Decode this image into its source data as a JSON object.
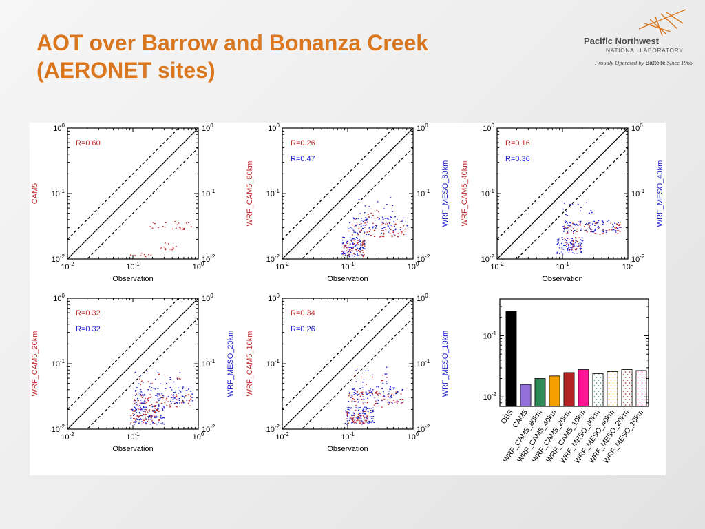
{
  "slide": {
    "title_line1": "AOT over Barrow and Bonanza Creek",
    "title_line2": "(AERONET sites)"
  },
  "logo": {
    "name": "Pacific Northwest",
    "sub": "NATIONAL LABORATORY",
    "tag_prefix": "Proudly Operated by",
    "tag_brand": "Battelle",
    "tag_suffix": "Since 1965"
  },
  "colors": {
    "title": "#d9761e",
    "cam": "#c0282c",
    "meso": "#1a1acc"
  },
  "chart_data": [
    {
      "type": "scatter",
      "xlabel": "Observation",
      "ylabel_left": "CAM5",
      "ylabel_right": "",
      "xscale": "log",
      "yscale": "log",
      "xlim": [
        0.01,
        1
      ],
      "ylim": [
        0.01,
        1
      ],
      "xticks": [
        "10^-2",
        "10^-1",
        "10^0"
      ],
      "yticks": [
        "10^-2",
        "10^-1",
        "10^0"
      ],
      "reference_lines": {
        "solid": "1:1",
        "dashed": [
          "2:1",
          "1:2"
        ]
      },
      "annotations": [
        {
          "text": "R=0.60",
          "series": "cam"
        }
      ],
      "clusters": [
        {
          "series": "cam",
          "x": [
            0.15,
            0.8
          ],
          "y": [
            0.027,
            0.038
          ],
          "n": 22
        },
        {
          "series": "cam",
          "x": [
            0.2,
            0.55
          ],
          "y": [
            0.014,
            0.018
          ],
          "n": 14
        },
        {
          "series": "cam",
          "x": [
            0.09,
            0.2
          ],
          "y": [
            0.0105,
            0.0125
          ],
          "n": 10
        }
      ]
    },
    {
      "type": "scatter",
      "xlabel": "Observation",
      "ylabel_left": "WRF_CAM5_80km",
      "ylabel_right": "WRF_MESO_80km",
      "xscale": "log",
      "yscale": "log",
      "xlim": [
        0.01,
        1
      ],
      "ylim": [
        0.01,
        1
      ],
      "xticks": [
        "10^-2",
        "10^-1",
        "10^0"
      ],
      "yticks": [
        "10^-2",
        "10^-1",
        "10^0"
      ],
      "reference_lines": {
        "solid": "1:1",
        "dashed": [
          "2:1",
          "1:2"
        ]
      },
      "annotations": [
        {
          "text": "R=0.26",
          "series": "cam"
        },
        {
          "text": "R=0.47",
          "series": "meso"
        }
      ],
      "clusters": [
        {
          "series": "meso",
          "x": [
            0.1,
            0.8
          ],
          "y": [
            0.024,
            0.045
          ],
          "n": 90
        },
        {
          "series": "meso",
          "x": [
            0.08,
            0.18
          ],
          "y": [
            0.011,
            0.022
          ],
          "n": 80
        },
        {
          "series": "meso",
          "x": [
            0.12,
            0.5
          ],
          "y": [
            0.05,
            0.09
          ],
          "n": 12
        },
        {
          "series": "cam",
          "x": [
            0.1,
            0.8
          ],
          "y": [
            0.022,
            0.038
          ],
          "n": 60
        },
        {
          "series": "cam",
          "x": [
            0.08,
            0.18
          ],
          "y": [
            0.011,
            0.02
          ],
          "n": 50
        },
        {
          "series": "cam",
          "x": [
            0.1,
            0.3
          ],
          "y": [
            0.04,
            0.06
          ],
          "n": 8
        }
      ]
    },
    {
      "type": "scatter",
      "xlabel": "Observation",
      "ylabel_left": "WRF_CAM5_40km",
      "ylabel_right": "WRF_MESO_40km",
      "xscale": "log",
      "yscale": "log",
      "xlim": [
        0.01,
        1
      ],
      "ylim": [
        0.01,
        1
      ],
      "xticks": [
        "10^-2",
        "10^-1",
        "10^0"
      ],
      "yticks": [
        "10^-2",
        "10^-1",
        "10^0"
      ],
      "reference_lines": {
        "solid": "1:1",
        "dashed": [
          "2:1",
          "1:2"
        ]
      },
      "annotations": [
        {
          "text": "R=0.16",
          "series": "cam"
        },
        {
          "text": "R=0.36",
          "series": "meso"
        }
      ],
      "clusters": [
        {
          "series": "meso",
          "x": [
            0.1,
            0.8
          ],
          "y": [
            0.026,
            0.04
          ],
          "n": 90
        },
        {
          "series": "meso",
          "x": [
            0.08,
            0.2
          ],
          "y": [
            0.012,
            0.022
          ],
          "n": 80
        },
        {
          "series": "meso",
          "x": [
            0.1,
            0.4
          ],
          "y": [
            0.045,
            0.075
          ],
          "n": 14
        },
        {
          "series": "cam",
          "x": [
            0.1,
            0.8
          ],
          "y": [
            0.024,
            0.038
          ],
          "n": 55
        },
        {
          "series": "cam",
          "x": [
            0.1,
            0.2
          ],
          "y": [
            0.014,
            0.022
          ],
          "n": 25
        }
      ]
    },
    {
      "type": "scatter",
      "xlabel": "Observation",
      "ylabel_left": "WRF_CAM5_20km",
      "ylabel_right": "WRF_MESO_20km",
      "xscale": "log",
      "yscale": "log",
      "xlim": [
        0.01,
        1
      ],
      "ylim": [
        0.01,
        1
      ],
      "xticks": [
        "10^-2",
        "10^-1",
        "10^0"
      ],
      "yticks": [
        "10^-2",
        "10^-1",
        "10^0"
      ],
      "reference_lines": {
        "solid": "1:1",
        "dashed": [
          "2:1",
          "1:2"
        ]
      },
      "annotations": [
        {
          "text": "R=0.32",
          "series": "cam"
        },
        {
          "text": "R=0.32",
          "series": "meso"
        }
      ],
      "clusters": [
        {
          "series": "meso",
          "x": [
            0.1,
            0.8
          ],
          "y": [
            0.025,
            0.045
          ],
          "n": 100
        },
        {
          "series": "meso",
          "x": [
            0.09,
            0.3
          ],
          "y": [
            0.012,
            0.024
          ],
          "n": 110
        },
        {
          "series": "meso",
          "x": [
            0.1,
            0.6
          ],
          "y": [
            0.05,
            0.08
          ],
          "n": 16
        },
        {
          "series": "cam",
          "x": [
            0.1,
            0.8
          ],
          "y": [
            0.022,
            0.035
          ],
          "n": 60
        },
        {
          "series": "cam",
          "x": [
            0.09,
            0.25
          ],
          "y": [
            0.012,
            0.022
          ],
          "n": 60
        },
        {
          "series": "cam",
          "x": [
            0.12,
            0.6
          ],
          "y": [
            0.045,
            0.07
          ],
          "n": 10
        }
      ]
    },
    {
      "type": "scatter",
      "xlabel": "Observation",
      "ylabel_left": "WRF_CAM5_10km",
      "ylabel_right": "WRF_MESO_10km",
      "xscale": "log",
      "yscale": "log",
      "xlim": [
        0.01,
        1
      ],
      "ylim": [
        0.01,
        1
      ],
      "xticks": [
        "10^-2",
        "10^-1",
        "10^0"
      ],
      "yticks": [
        "10^-2",
        "10^-1",
        "10^0"
      ],
      "reference_lines": {
        "solid": "1:1",
        "dashed": [
          "2:1",
          "1:2"
        ]
      },
      "annotations": [
        {
          "text": "R=0.34",
          "series": "cam"
        },
        {
          "text": "R=0.26",
          "series": "meso"
        }
      ],
      "clusters": [
        {
          "series": "meso",
          "x": [
            0.1,
            0.7
          ],
          "y": [
            0.025,
            0.045
          ],
          "n": 90
        },
        {
          "series": "meso",
          "x": [
            0.09,
            0.25
          ],
          "y": [
            0.012,
            0.022
          ],
          "n": 100
        },
        {
          "series": "meso",
          "x": [
            0.12,
            0.4
          ],
          "y": [
            0.05,
            0.09
          ],
          "n": 14
        },
        {
          "series": "cam",
          "x": [
            0.1,
            0.7
          ],
          "y": [
            0.022,
            0.038
          ],
          "n": 60
        },
        {
          "series": "cam",
          "x": [
            0.09,
            0.2
          ],
          "y": [
            0.012,
            0.02
          ],
          "n": 50
        },
        {
          "series": "cam",
          "x": [
            0.12,
            0.4
          ],
          "y": [
            0.045,
            0.07
          ],
          "n": 8
        }
      ]
    },
    {
      "type": "bar",
      "yscale": "log",
      "ylim": [
        0.007,
        0.4
      ],
      "yticks": [
        "10^-1",
        "10^-2"
      ],
      "categories": [
        "OBS",
        "CAM5",
        "WRF_CAM5_80km",
        "WRF_CAM5_40km",
        "WRF_CAM5_20km",
        "WRF_CAM5_10km",
        "WRF_MESO_80km",
        "WRF_MESO_40km",
        "WRF_MESO_20km",
        "WRF_MESO_10km"
      ],
      "values": [
        0.25,
        0.016,
        0.02,
        0.022,
        0.025,
        0.028,
        0.024,
        0.026,
        0.028,
        0.027
      ],
      "colors": [
        "#000000",
        "#9370db",
        "#2e8b57",
        "#f5a000",
        "#b22222",
        "#ff1493",
        "#ffffff",
        "#ffffff",
        "#ffffff",
        "#ffffff"
      ],
      "dot_colors": [
        "",
        "",
        "",
        "",
        "",
        "",
        "#2e8b57",
        "#f5a000",
        "#b22222",
        "#ff1493"
      ]
    }
  ]
}
